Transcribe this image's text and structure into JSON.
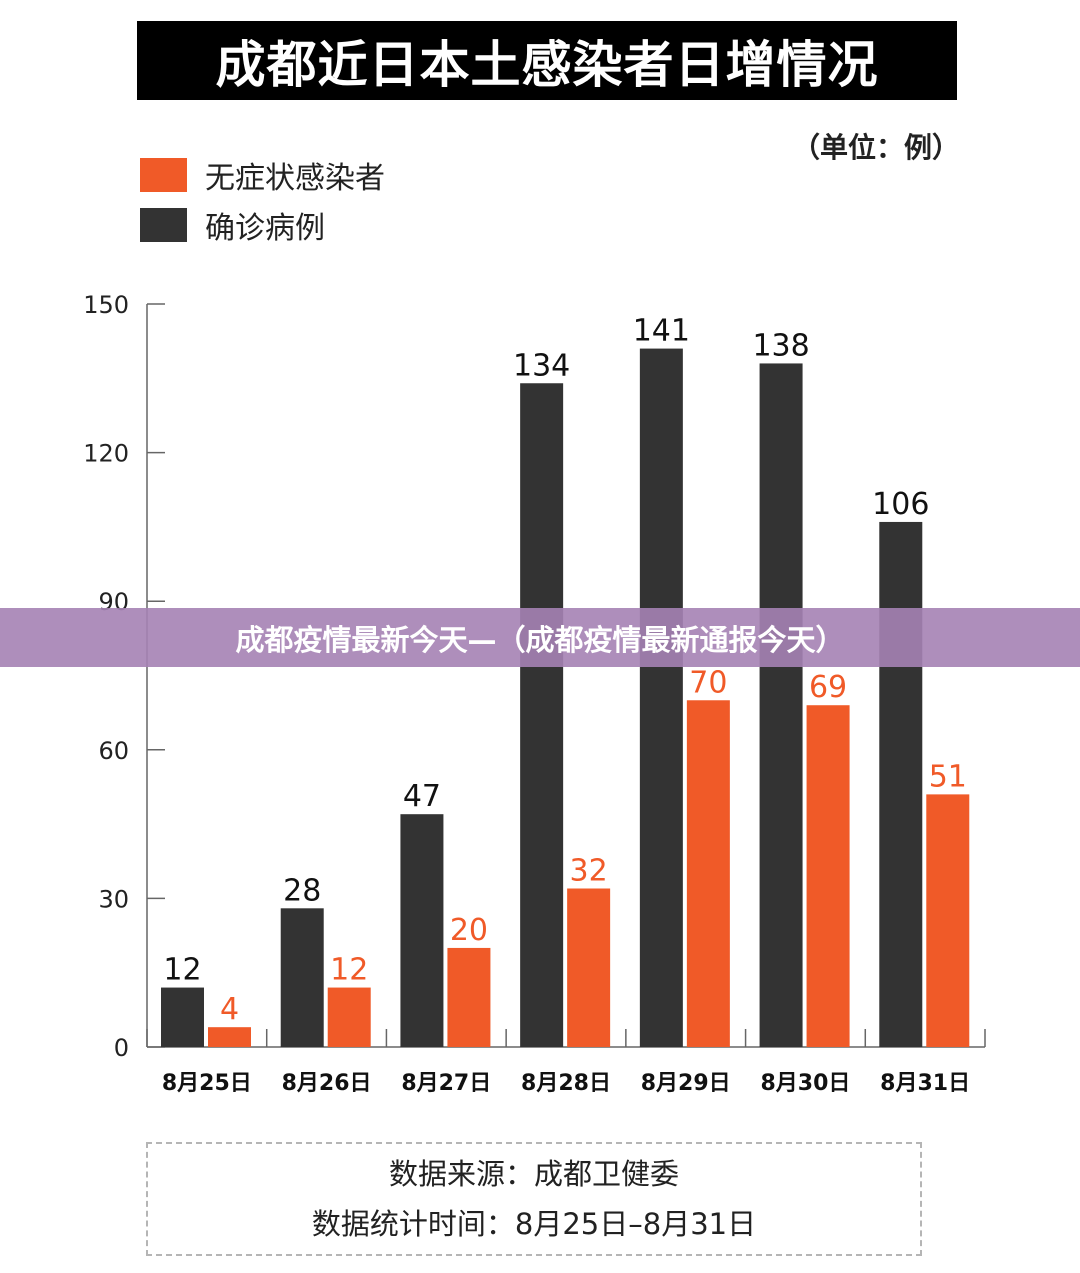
{
  "header": {
    "title": "成都近日本土感染者日增情况",
    "unit": "（单位：例）"
  },
  "overlay_banner": "成都疫情最新今天—（成都疫情最新通报今天）",
  "colors": {
    "asymptomatic": "#f05a28",
    "confirmed": "#333333",
    "axis": "#666666"
  },
  "legend": [
    {
      "label": "无症状感染者",
      "color": "#f05a28"
    },
    {
      "label": "确诊病例",
      "color": "#333333"
    }
  ],
  "source": {
    "line1": "数据来源：成都卫健委",
    "line2": "数据统计时间：8月25日–8月31日"
  },
  "chart_data": {
    "type": "bar",
    "title": "成都近日本土感染者日增情况",
    "categories": [
      "8月25日",
      "8月26日",
      "8月27日",
      "8月28日",
      "8月29日",
      "8月30日",
      "8月31日"
    ],
    "series": [
      {
        "name": "确诊病例",
        "values": [
          12,
          28,
          47,
          134,
          141,
          138,
          106
        ]
      },
      {
        "name": "无症状感染者",
        "values": [
          4,
          12,
          20,
          32,
          70,
          69,
          51
        ]
      }
    ],
    "ylim": [
      0,
      150
    ],
    "yticks": [
      0,
      30,
      60,
      90,
      120,
      150
    ],
    "grid": false,
    "legend_position": "top-left"
  }
}
